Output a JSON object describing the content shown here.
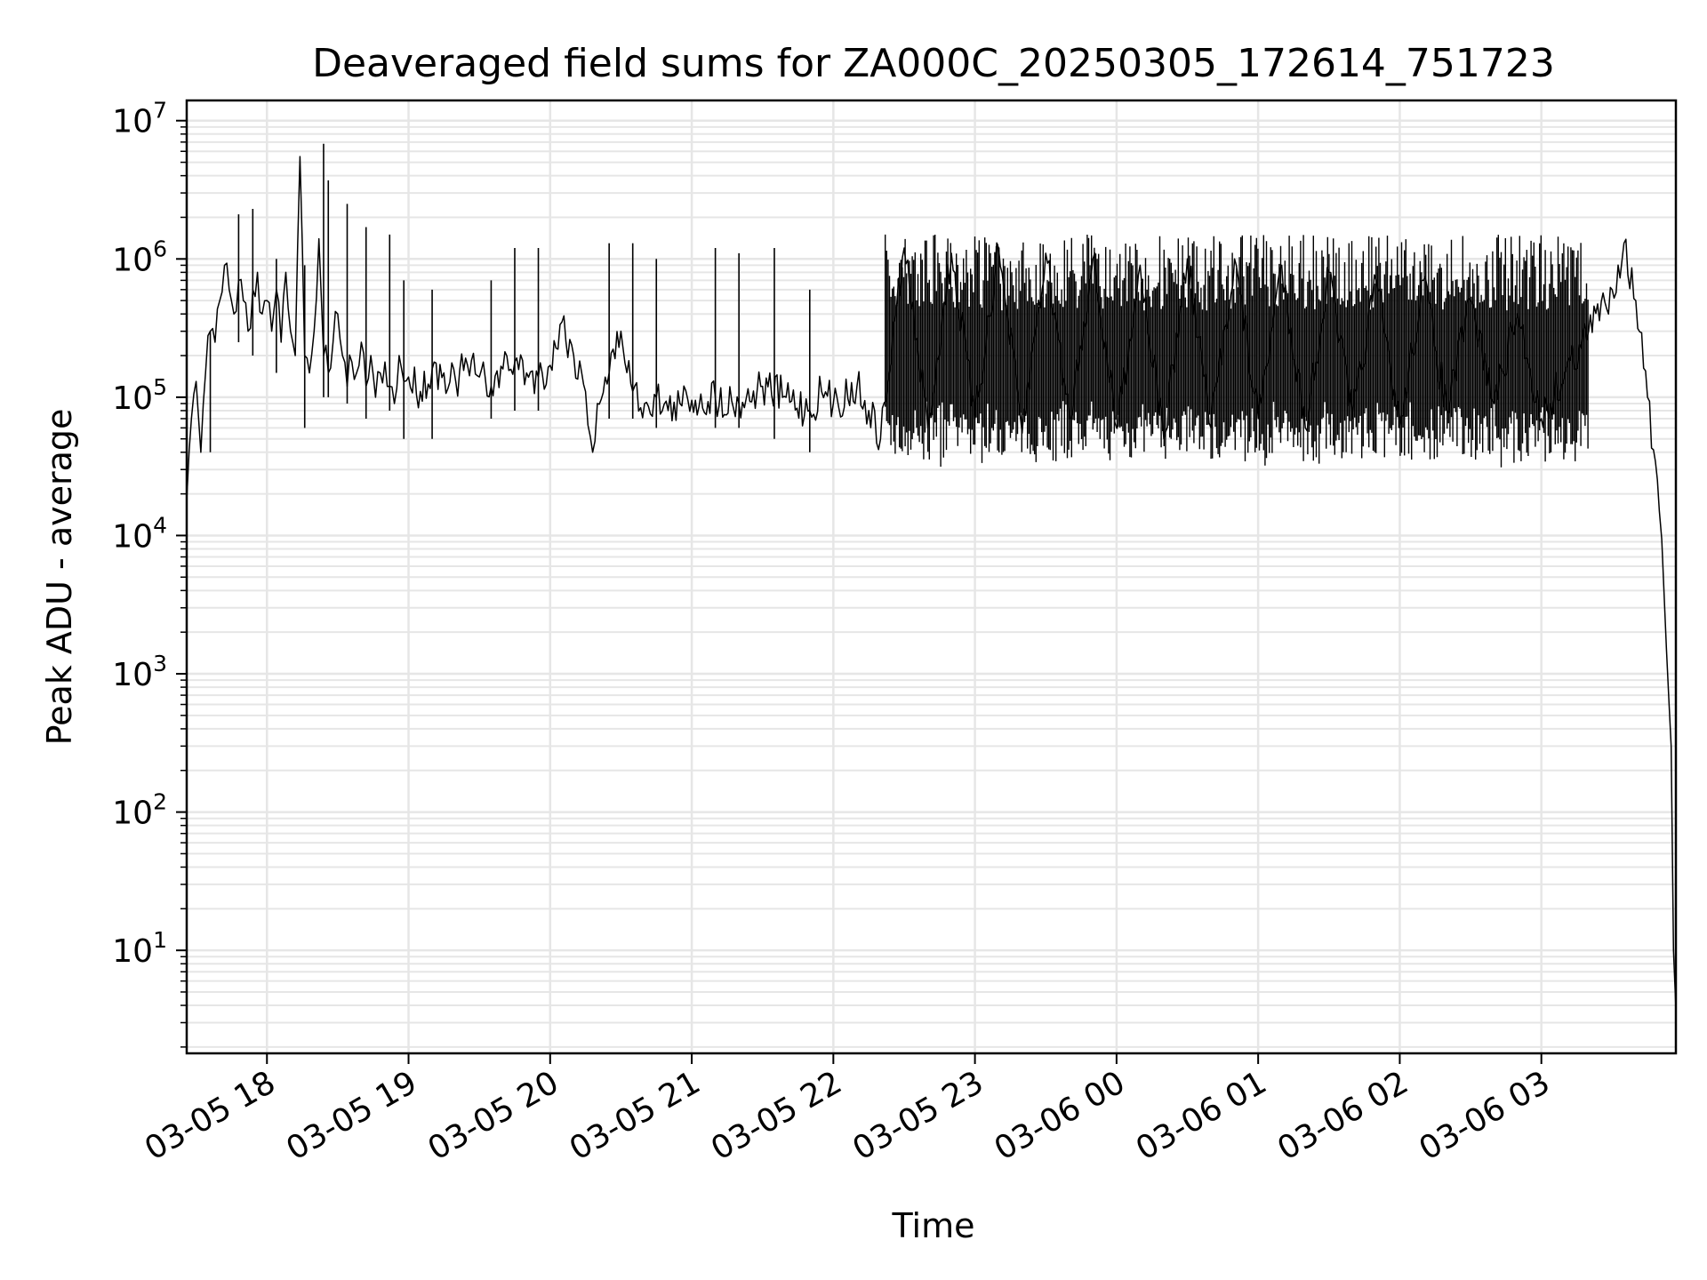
{
  "chart_data": {
    "type": "line",
    "title": "Deaveraged field sums for ZA000C_20250305_172614_751723",
    "xlabel": "Time",
    "ylabel": "Peak ADU - average",
    "y_scale": "log",
    "ylim": [
      1.8,
      14000000
    ],
    "xlim": [
      "2025-03-05 17:26",
      "2025-03-06 03:57"
    ],
    "grid": true,
    "line_color": "#000000",
    "grid_color": "#e6e6e6",
    "x_ticks": [
      {
        "t": "2025-03-05 18:00",
        "label": "03-05 18"
      },
      {
        "t": "2025-03-05 19:00",
        "label": "03-05 19"
      },
      {
        "t": "2025-03-05 20:00",
        "label": "03-05 20"
      },
      {
        "t": "2025-03-05 21:00",
        "label": "03-05 21"
      },
      {
        "t": "2025-03-05 22:00",
        "label": "03-05 22"
      },
      {
        "t": "2025-03-05 23:00",
        "label": "03-05 23"
      },
      {
        "t": "2025-03-06 00:00",
        "label": "03-06 00"
      },
      {
        "t": "2025-03-06 01:00",
        "label": "03-06 01"
      },
      {
        "t": "2025-03-06 02:00",
        "label": "03-06 02"
      },
      {
        "t": "2025-03-06 03:00",
        "label": "03-06 03"
      }
    ],
    "y_ticks": [
      {
        "value": 10,
        "base": "10",
        "exp": "1"
      },
      {
        "value": 100,
        "base": "10",
        "exp": "2"
      },
      {
        "value": 1000,
        "base": "10",
        "exp": "3"
      },
      {
        "value": 10000,
        "base": "10",
        "exp": "4"
      },
      {
        "value": 100000,
        "base": "10",
        "exp": "5"
      },
      {
        "value": 1000000,
        "base": "10",
        "exp": "6"
      },
      {
        "value": 10000000,
        "base": "10",
        "exp": "7"
      }
    ],
    "series": [
      {
        "x": [
          "2025-03-05 17:26",
          "2025-03-05 17:28",
          "2025-03-05 17:30",
          "2025-03-05 17:32",
          "2025-03-05 17:34",
          "2025-03-05 17:36",
          "2025-03-05 17:38",
          "2025-03-05 17:40",
          "2025-03-05 17:42",
          "2025-03-05 17:44",
          "2025-03-05 17:46",
          "2025-03-05 17:48",
          "2025-03-05 17:50",
          "2025-03-05 17:52",
          "2025-03-05 17:54",
          "2025-03-05 17:56",
          "2025-03-05 17:58",
          "2025-03-05 18:00",
          "2025-03-05 18:02",
          "2025-03-05 18:04",
          "2025-03-05 18:06",
          "2025-03-05 18:08",
          "2025-03-05 18:10",
          "2025-03-05 18:12",
          "2025-03-05 18:14",
          "2025-03-05 18:16",
          "2025-03-05 18:18",
          "2025-03-05 18:20",
          "2025-03-05 18:22",
          "2025-03-05 18:24",
          "2025-03-05 18:26",
          "2025-03-05 18:28",
          "2025-03-05 18:30",
          "2025-03-05 18:32",
          "2025-03-05 18:34",
          "2025-03-05 18:36",
          "2025-03-05 18:38",
          "2025-03-05 18:40",
          "2025-03-05 18:42",
          "2025-03-05 18:44",
          "2025-03-05 18:46",
          "2025-03-05 18:48",
          "2025-03-05 18:50",
          "2025-03-05 18:52",
          "2025-03-05 18:54",
          "2025-03-05 18:56",
          "2025-03-05 18:58",
          "2025-03-05 19:00",
          "2025-03-05 19:05",
          "2025-03-05 19:10",
          "2025-03-05 19:15",
          "2025-03-05 19:20",
          "2025-03-05 19:25",
          "2025-03-05 19:30",
          "2025-03-05 19:35",
          "2025-03-05 19:40",
          "2025-03-05 19:45",
          "2025-03-05 19:50",
          "2025-03-05 19:55",
          "2025-03-05 20:00",
          "2025-03-05 20:05",
          "2025-03-05 20:10",
          "2025-03-05 20:15",
          "2025-03-05 20:18",
          "2025-03-05 20:20",
          "2025-03-05 20:25",
          "2025-03-05 20:30",
          "2025-03-05 20:35",
          "2025-03-05 20:40",
          "2025-03-05 20:45",
          "2025-03-05 20:50",
          "2025-03-05 20:55",
          "2025-03-05 21:00",
          "2025-03-05 21:10",
          "2025-03-05 21:20",
          "2025-03-05 21:30",
          "2025-03-05 21:40",
          "2025-03-05 21:50",
          "2025-03-05 21:55",
          "2025-03-05 22:00",
          "2025-03-05 22:10",
          "2025-03-05 22:15",
          "2025-03-05 22:20",
          "2025-03-05 22:30",
          "2025-03-05 22:40",
          "2025-03-05 22:50",
          "2025-03-05 23:00",
          "2025-03-05 23:10",
          "2025-03-05 23:20",
          "2025-03-05 23:30",
          "2025-03-05 23:40",
          "2025-03-05 23:50",
          "2025-03-06 00:00",
          "2025-03-06 00:10",
          "2025-03-06 00:20",
          "2025-03-06 00:30",
          "2025-03-06 00:40",
          "2025-03-06 00:50",
          "2025-03-06 01:00",
          "2025-03-06 01:10",
          "2025-03-06 01:20",
          "2025-03-06 01:30",
          "2025-03-06 01:40",
          "2025-03-06 01:50",
          "2025-03-06 02:00",
          "2025-03-06 02:10",
          "2025-03-06 02:20",
          "2025-03-06 02:30",
          "2025-03-06 02:40",
          "2025-03-06 02:50",
          "2025-03-06 03:00",
          "2025-03-06 03:10",
          "2025-03-06 03:20",
          "2025-03-06 03:30",
          "2025-03-06 03:35",
          "2025-03-06 03:40",
          "2025-03-06 03:45",
          "2025-03-06 03:50",
          "2025-03-06 03:53",
          "2025-03-06 03:55",
          "2025-03-06 03:56",
          "2025-03-06 03:57"
        ],
        "y": [
          18000,
          70000,
          130000,
          40000,
          150000,
          300000,
          250000,
          500000,
          900000,
          600000,
          400000,
          700000,
          500000,
          300000,
          600000,
          800000,
          400000,
          500000,
          300000,
          600000,
          250000,
          800000,
          300000,
          200000,
          5500000,
          200000,
          150000,
          300000,
          1400000,
          200000,
          150000,
          250000,
          400000,
          200000,
          120000,
          180000,
          150000,
          250000,
          120000,
          200000,
          100000,
          150000,
          180000,
          120000,
          90000,
          200000,
          130000,
          140000,
          110000,
          160000,
          150000,
          130000,
          170000,
          140000,
          120000,
          160000,
          180000,
          150000,
          140000,
          170000,
          350000,
          200000,
          110000,
          40000,
          90000,
          150000,
          300000,
          110000,
          90000,
          100000,
          80000,
          90000,
          95000,
          100000,
          90000,
          120000,
          100000,
          80000,
          110000,
          90000,
          120000,
          80000,
          50000,
          1200000,
          60000,
          1100000,
          70000,
          1200000,
          55000,
          1100000,
          70000,
          1000000,
          60000,
          900000,
          50000,
          1000000,
          60000,
          1000000,
          70000,
          900000,
          60000,
          800000,
          70000,
          700000,
          60000,
          700000,
          80000,
          500000,
          90000,
          400000,
          70000,
          150000,
          300000,
          600000,
          1300000,
          500000,
          100000,
          15000,
          1500,
          300,
          10,
          3.8
        ],
        "spikes": [
          {
            "t": "2025-03-05 17:36",
            "lo": 40000,
            "hi": 300000
          },
          {
            "t": "2025-03-05 17:48",
            "lo": 250000,
            "hi": 2100000
          },
          {
            "t": "2025-03-05 17:54",
            "lo": 200000,
            "hi": 2300000
          },
          {
            "t": "2025-03-05 18:04",
            "lo": 150000,
            "hi": 1000000
          },
          {
            "t": "2025-03-05 18:16",
            "lo": 60000,
            "hi": 900000
          },
          {
            "t": "2025-03-05 18:24",
            "lo": 100000,
            "hi": 6800000
          },
          {
            "t": "2025-03-05 18:26",
            "lo": 100000,
            "hi": 3700000
          },
          {
            "t": "2025-03-05 18:34",
            "lo": 90000,
            "hi": 2500000
          },
          {
            "t": "2025-03-05 18:42",
            "lo": 70000,
            "hi": 1700000
          },
          {
            "t": "2025-03-05 18:52",
            "lo": 80000,
            "hi": 1500000
          },
          {
            "t": "2025-03-05 18:58",
            "lo": 50000,
            "hi": 700000
          },
          {
            "t": "2025-03-05 19:10",
            "lo": 50000,
            "hi": 600000
          },
          {
            "t": "2025-03-05 19:35",
            "lo": 70000,
            "hi": 700000
          },
          {
            "t": "2025-03-05 19:45",
            "lo": 80000,
            "hi": 1200000
          },
          {
            "t": "2025-03-05 19:55",
            "lo": 80000,
            "hi": 1200000
          },
          {
            "t": "2025-03-05 20:25",
            "lo": 70000,
            "hi": 1300000
          },
          {
            "t": "2025-03-05 20:35",
            "lo": 70000,
            "hi": 1300000
          },
          {
            "t": "2025-03-05 20:45",
            "lo": 60000,
            "hi": 1000000
          },
          {
            "t": "2025-03-05 21:10",
            "lo": 60000,
            "hi": 1200000
          },
          {
            "t": "2025-03-05 21:20",
            "lo": 60000,
            "hi": 1100000
          },
          {
            "t": "2025-03-05 21:35",
            "lo": 50000,
            "hi": 1200000
          },
          {
            "t": "2025-03-05 21:50",
            "lo": 40000,
            "hi": 600000
          }
        ],
        "dense_region": {
          "start": "2025-03-05 22:22",
          "end": "2025-03-06 03:20",
          "lo": 40000,
          "hi": 1500000
        }
      }
    ]
  }
}
